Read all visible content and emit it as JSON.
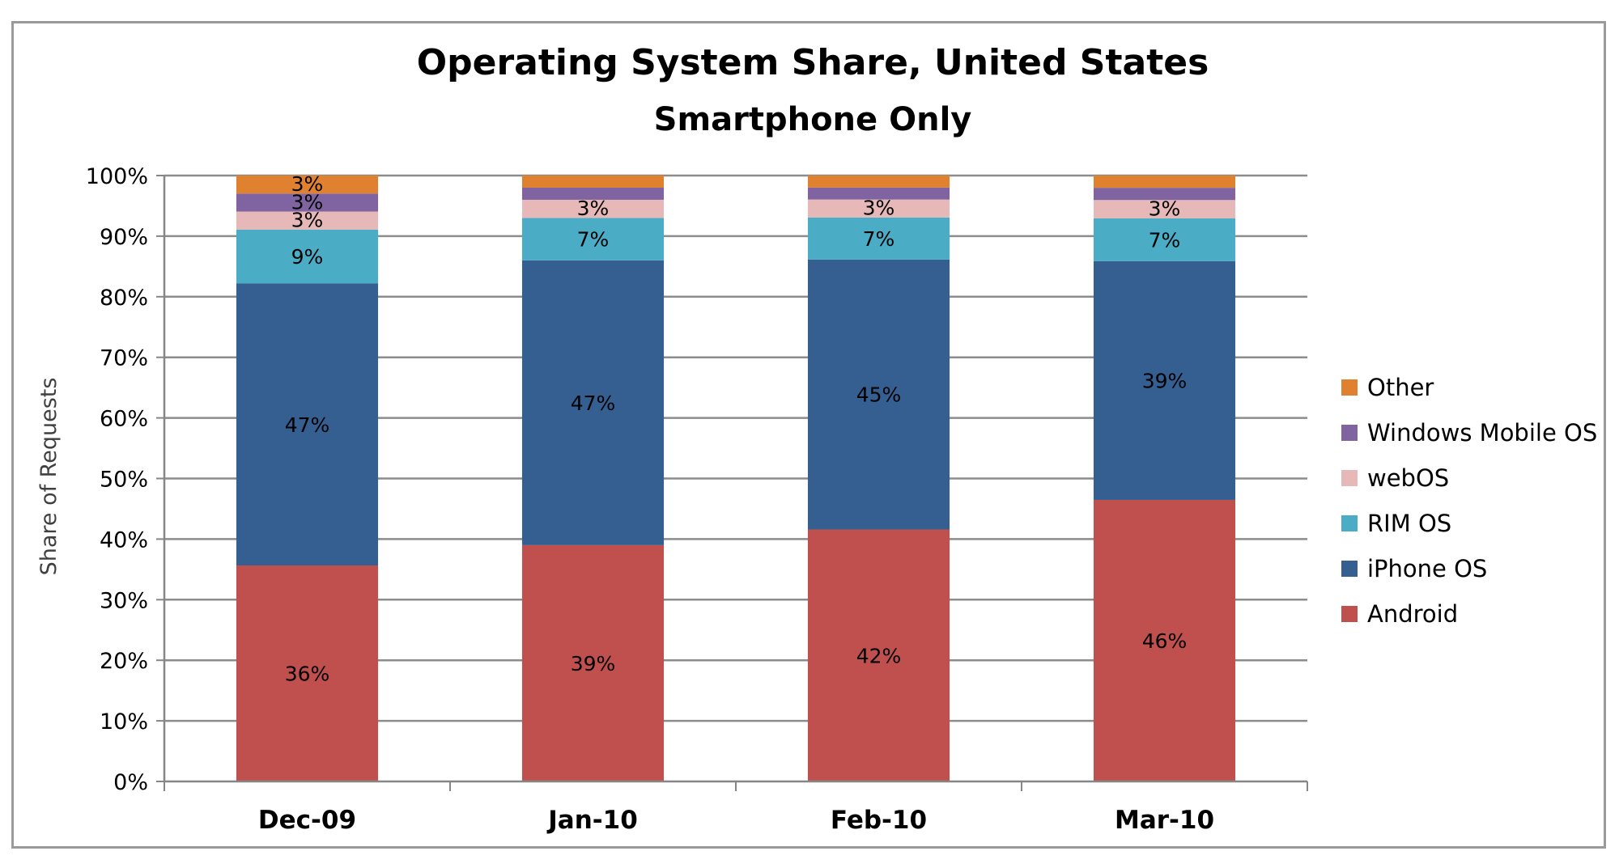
{
  "chart_data": {
    "type": "bar",
    "stacked": true,
    "title": "Operating System Share, United States",
    "subtitle": "Smartphone Only",
    "xlabel": "",
    "ylabel": "Share of Requests",
    "ylim": [
      0,
      100
    ],
    "yticks": [
      "0%",
      "10%",
      "20%",
      "30%",
      "40%",
      "50%",
      "60%",
      "70%",
      "80%",
      "90%",
      "100%"
    ],
    "grid": true,
    "legend_position": "right",
    "categories": [
      "Dec-09",
      "Jan-10",
      "Feb-10",
      "Mar-10"
    ],
    "series": [
      {
        "name": "Android",
        "color": "#c0504d",
        "values": [
          36,
          39,
          42,
          46
        ],
        "labels": [
          "36%",
          "39%",
          "42%",
          "46%"
        ]
      },
      {
        "name": "iPhone OS",
        "color": "#365f91",
        "values": [
          47,
          47,
          45,
          39
        ],
        "labels": [
          "47%",
          "47%",
          "45%",
          "39%"
        ]
      },
      {
        "name": "RIM OS",
        "color": "#4bacc6",
        "values": [
          9,
          7,
          7,
          7
        ],
        "labels": [
          "9%",
          "7%",
          "7%",
          "7%"
        ]
      },
      {
        "name": "webOS",
        "color": "#e6b9b8",
        "values": [
          3,
          3,
          3,
          3
        ],
        "labels": [
          "3%",
          "3%",
          "3%",
          "3%"
        ]
      },
      {
        "name": "Windows Mobile OS",
        "color": "#8064a2",
        "values": [
          3,
          2,
          2,
          2
        ],
        "labels": [
          "3%",
          "",
          "",
          ""
        ]
      },
      {
        "name": "Other",
        "color": "#e0812f",
        "values": [
          3,
          2,
          2,
          2
        ],
        "labels": [
          "3%",
          "",
          "",
          ""
        ]
      }
    ],
    "legend_order": [
      "Other",
      "Windows Mobile OS",
      "webOS",
      "RIM OS",
      "iPhone OS",
      "Android"
    ]
  }
}
